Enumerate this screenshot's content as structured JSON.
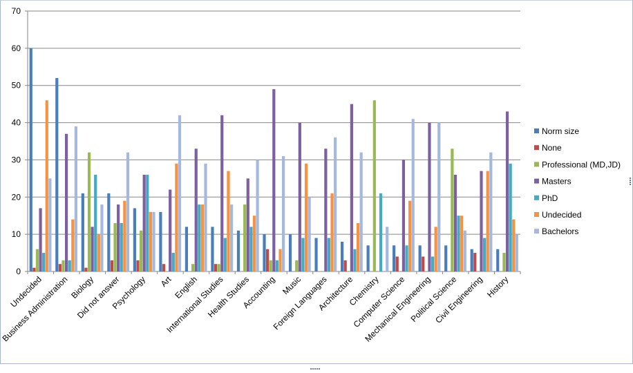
{
  "chart_data": {
    "type": "bar",
    "ylim": [
      0,
      70
    ],
    "yticks": [
      "0",
      "10",
      "20",
      "30",
      "40",
      "50",
      "60",
      "70"
    ],
    "grid": true,
    "legend_position": "right",
    "categories": [
      "Undecided",
      "Business Administration",
      "Biology",
      "Did not answer",
      "Psychology",
      "Art",
      "English",
      "International Studies",
      "Health Studies",
      "Accounting",
      "Music",
      "Foreign Languages",
      "Architecture",
      "Chemistry",
      "Computer Science",
      "Mechanical Engineering",
      "Political Science",
      "Civil Engineering",
      "History"
    ],
    "series": [
      {
        "name": "Norm size",
        "color": "#4a7ebb",
        "values": [
          60,
          52,
          21,
          21,
          17,
          16,
          12,
          12,
          11,
          10,
          10,
          9,
          8,
          7,
          7,
          7,
          7,
          6,
          6
        ]
      },
      {
        "name": "None",
        "color": "#be4b48",
        "values": [
          1,
          2,
          1,
          3,
          3,
          2,
          0,
          2,
          0,
          6,
          0,
          0,
          3,
          0,
          4,
          4,
          0,
          5,
          0
        ]
      },
      {
        "name": "Professional (MD,JD)",
        "color": "#98b954",
        "values": [
          6,
          3,
          32,
          13,
          11,
          0,
          2,
          2,
          18,
          3,
          3,
          0,
          0,
          46,
          0,
          0,
          33,
          0,
          5
        ]
      },
      {
        "name": "Masters",
        "color": "#7d60a0",
        "values": [
          17,
          37,
          12,
          18,
          26,
          22,
          33,
          42,
          25,
          49,
          40,
          33,
          45,
          0,
          30,
          40,
          26,
          27,
          43
        ]
      },
      {
        "name": "PhD",
        "color": "#46aac5",
        "values": [
          5,
          3,
          26,
          13,
          26,
          5,
          18,
          9,
          12,
          3,
          9,
          9,
          6,
          21,
          7,
          4,
          15,
          9,
          29
        ]
      },
      {
        "name": "Undecided",
        "color": "#f69240",
        "values": [
          46,
          14,
          10,
          19,
          16,
          29,
          18,
          27,
          15,
          6,
          29,
          21,
          13,
          0,
          19,
          12,
          15,
          27,
          14
        ]
      },
      {
        "name": "Bachelors",
        "color": "#a5b9de",
        "values": [
          25,
          39,
          18,
          32,
          16,
          42,
          29,
          18,
          30,
          31,
          20,
          36,
          32,
          12,
          41,
          40,
          11,
          32,
          10
        ]
      }
    ]
  }
}
